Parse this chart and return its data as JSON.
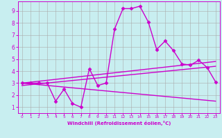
{
  "xlabel": "Windchill (Refroidissement éolien,°C)",
  "background_color": "#c8eef0",
  "line_color": "#cc00cc",
  "xlim": [
    -0.5,
    23.5
  ],
  "ylim": [
    0.5,
    9.8
  ],
  "xticks": [
    0,
    1,
    2,
    3,
    4,
    5,
    6,
    7,
    8,
    9,
    10,
    11,
    12,
    13,
    14,
    15,
    16,
    17,
    18,
    19,
    20,
    21,
    22,
    23
  ],
  "yticks": [
    1,
    2,
    3,
    4,
    5,
    6,
    7,
    8,
    9
  ],
  "grid_color": "#aaaaaa",
  "series": [
    {
      "x": [
        0,
        1,
        2,
        3,
        4,
        5,
        6,
        7,
        8,
        9,
        10,
        11,
        12,
        13,
        14,
        15,
        16,
        17,
        18,
        19,
        20,
        21,
        22,
        23
      ],
      "y": [
        3.0,
        3.0,
        3.0,
        3.0,
        1.5,
        2.5,
        1.3,
        1.0,
        4.2,
        2.8,
        3.0,
        7.5,
        9.2,
        9.2,
        9.4,
        8.1,
        5.8,
        6.5,
        5.7,
        4.6,
        4.5,
        4.9,
        4.3,
        3.1
      ],
      "marker": "D",
      "markersize": 2.5,
      "linewidth": 1.0
    },
    {
      "x": [
        0,
        23
      ],
      "y": [
        3.0,
        4.8
      ],
      "marker": null,
      "linewidth": 1.0
    },
    {
      "x": [
        0,
        23
      ],
      "y": [
        2.8,
        4.4
      ],
      "marker": null,
      "linewidth": 1.0
    },
    {
      "x": [
        0,
        23
      ],
      "y": [
        3.0,
        1.5
      ],
      "marker": null,
      "linewidth": 1.0
    }
  ]
}
